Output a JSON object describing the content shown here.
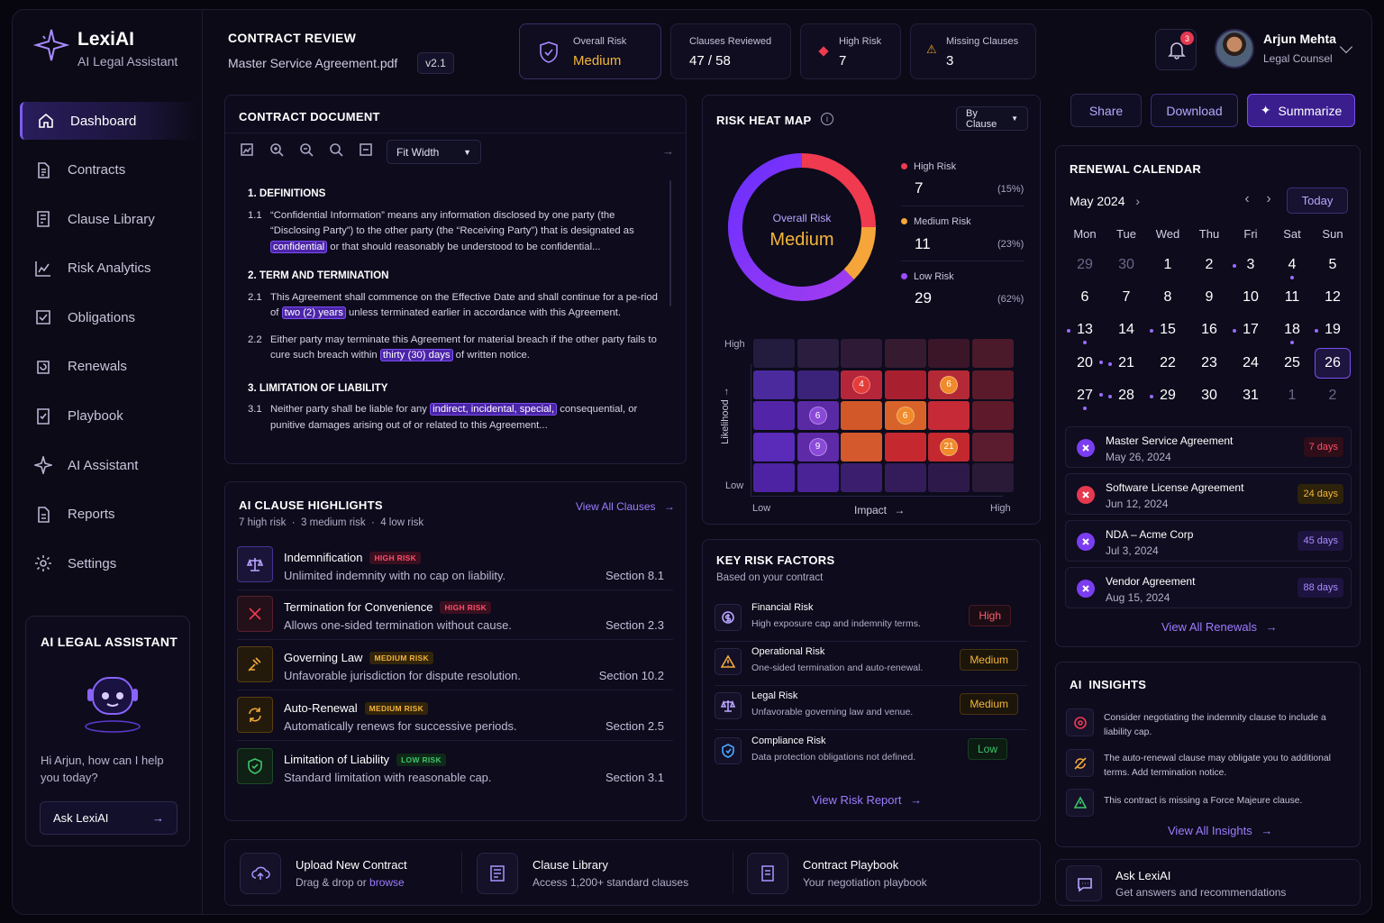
{
  "app": {
    "name": "LexiAI",
    "tagline": "AI Legal Assistant"
  },
  "nav": [
    {
      "label": "Dashboard",
      "icon": "home-icon",
      "active": true
    },
    {
      "label": "Contracts",
      "icon": "document-icon"
    },
    {
      "label": "Clause Library",
      "icon": "library-icon"
    },
    {
      "label": "Risk Analytics",
      "icon": "chart-icon"
    },
    {
      "label": "Obligations",
      "icon": "checklist-icon"
    },
    {
      "label": "Renewals",
      "icon": "renew-icon"
    },
    {
      "label": "Playbook",
      "icon": "playbook-icon"
    },
    {
      "label": "AI Assistant",
      "icon": "sparkle-icon"
    },
    {
      "label": "Reports",
      "icon": "report-icon"
    },
    {
      "label": "Settings",
      "icon": "gear-icon"
    }
  ],
  "assistant": {
    "title": "AI LEGAL ASSISTANT",
    "greeting": "Hi Arjun, how can I help you today?",
    "button": "Ask LexiAI"
  },
  "header": {
    "section": "CONTRACT REVIEW",
    "file": "Master Service Agreement.pdf",
    "version": "v2.1"
  },
  "stats": [
    {
      "label": "Overall Risk",
      "value": "Medium",
      "color": "#f5b63a"
    },
    {
      "label": "Clauses Reviewed",
      "value": "47 / 58"
    },
    {
      "label": "High Risk",
      "value": "7",
      "color": "#ef3a4f"
    },
    {
      "label": "Missing Clauses",
      "value": "3",
      "color": "#f0a020"
    }
  ],
  "notifications": "3",
  "user": {
    "name": "Arjun Mehta",
    "role": "Legal Counsel"
  },
  "actions": {
    "share": "Share",
    "download": "Download",
    "summarize": "Summarize"
  },
  "document": {
    "title": "CONTRACT DOCUMENT",
    "zoom": "Fit Width",
    "s1": "1. DEFINITIONS",
    "c11n": "1.1",
    "c11a": "“Confidential Information” means any information disclosed by one party (the “Disclosing Party”) to the other party (the “Receiving Party”) that is designated as ",
    "c11h": "confidential",
    "c11b": " or that should reasonably be understood to be confidential...",
    "s2": "2. TERM AND TERMINATION",
    "c21n": "2.1",
    "c21a": "This Agreement shall commence on the Effective Date and shall continue for a pe-riod of ",
    "c21h": "two (2) years",
    "c21b": " unless terminated earlier in accordance with this Agreement.",
    "c22n": "2.2",
    "c22a": "Either party may terminate this Agreement for material breach if the other party fails to cure such breach within ",
    "c22h": "thirty (30) days",
    "c22b": " of written notice.",
    "s3": "3. LIMITATION OF LIABILITY",
    "c31n": "3.1",
    "c31a": "Neither party shall be liable for any ",
    "c31h": "indirect, incidental, special,",
    "c31b": " consequential, or punitive damages arising out of or related to this Agreement..."
  },
  "highlights": {
    "title": "AI CLAUSE HIGHLIGHTS",
    "summary": "7 high risk  ·  3 medium risk  ·  4 low risk",
    "view_all": "View All Clauses",
    "items": [
      {
        "name": "Indemnification",
        "tag": "HIGH RISK",
        "desc": "Unlimited indemnity with no cap on liability.",
        "section": "Section 8.1"
      },
      {
        "name": "Termination for Convenience",
        "tag": "HIGH RISK",
        "desc": "Allows one-sided termination without cause.",
        "section": "Section 2.3"
      },
      {
        "name": "Governing Law",
        "tag": "MEDIUM RISK",
        "desc": "Unfavorable jurisdiction for dispute resolution.",
        "section": "Section 10.2"
      },
      {
        "name": "Auto-Renewal",
        "tag": "MEDIUM RISK",
        "desc": "Automatically renews for successive periods.",
        "section": "Section 2.5"
      },
      {
        "name": "Limitation of Liability",
        "tag": "LOW RISK",
        "desc": "Standard limitation with reasonable cap.",
        "section": "Section 3.1"
      }
    ]
  },
  "heatmap": {
    "title": "RISK HEAT MAP",
    "filter": "By Clause",
    "donut_label": "Overall Risk",
    "donut_value": "Medium",
    "legend": [
      {
        "label": "High Risk",
        "value": "7",
        "pct": "(15%)",
        "color": "#ef3a4f"
      },
      {
        "label": "Medium Risk",
        "value": "11",
        "pct": "(23%)",
        "color": "#f5a53a"
      },
      {
        "label": "Low Risk",
        "value": "29",
        "pct": "(62%)",
        "color": "#9b4dff"
      }
    ],
    "y_high": "High",
    "y_low": "Low",
    "y_axis": "Likelihood",
    "x_low": "Low",
    "x_axis": "Impact",
    "x_high": "High",
    "bubbles": [
      "4",
      "6",
      "6",
      "6",
      "9",
      "21"
    ]
  },
  "risk_factors": {
    "title": "KEY RISK FACTORS",
    "subtitle": "Based on your contract",
    "items": [
      {
        "name": "Financial Risk",
        "desc": "High exposure cap and indemnity terms.",
        "level": "High"
      },
      {
        "name": "Operational Risk",
        "desc": "One-sided termination and auto-renewal.",
        "level": "Medium"
      },
      {
        "name": "Legal Risk",
        "desc": "Unfavorable governing law and venue.",
        "level": "Medium"
      },
      {
        "name": "Compliance Risk",
        "desc": "Data protection obligations not defined.",
        "level": "Low"
      }
    ],
    "view": "View Risk Report"
  },
  "calendar": {
    "title": "RENEWAL CALENDAR",
    "month": "May 2024",
    "today": "Today",
    "weekdays": [
      "Mon",
      "Tue",
      "Wed",
      "Thu",
      "Fri",
      "Sat",
      "Sun"
    ],
    "days": [
      "29",
      "30",
      "1",
      "2",
      "3",
      "4",
      "5",
      "6",
      "7",
      "8",
      "9",
      "10",
      "11",
      "12",
      "13",
      "14",
      "15",
      "16",
      "17",
      "18",
      "19",
      "20",
      "21",
      "22",
      "23",
      "24",
      "25",
      "26",
      "27",
      "28",
      "29",
      "30",
      "31",
      "1",
      "2"
    ],
    "renewals": [
      {
        "name": "Master Service Agreement",
        "date": "May 26, 2024",
        "days": "7 days"
      },
      {
        "name": "Software License Agreement",
        "date": "Jun 12, 2024",
        "days": "24 days"
      },
      {
        "name": "NDA – Acme Corp",
        "date": "Jul 3, 2024",
        "days": "45 days"
      },
      {
        "name": "Vendor Agreement",
        "date": "Aug 15, 2024",
        "days": "88 days"
      }
    ],
    "view": "View All Renewals"
  },
  "insights": {
    "title": "AI  INSIGHTS",
    "items": [
      "Consider negotiating the indemnity clause to include a liability cap.",
      "The auto-renewal clause may obligate you to additional terms. Add termination notice.",
      "This contract is missing a Force Majeure clause."
    ],
    "view": "View All Insights"
  },
  "ask": {
    "title": "Ask LexiAI",
    "subtitle": "Get answers and recommendations"
  },
  "quick": [
    {
      "title": "Upload New Contract",
      "sub": "Drag & drop or ",
      "link": "browse"
    },
    {
      "title": "Clause Library",
      "sub": "Access 1,200+ standard clauses"
    },
    {
      "title": "Contract Playbook",
      "sub": "Your negotiation playbook"
    }
  ]
}
